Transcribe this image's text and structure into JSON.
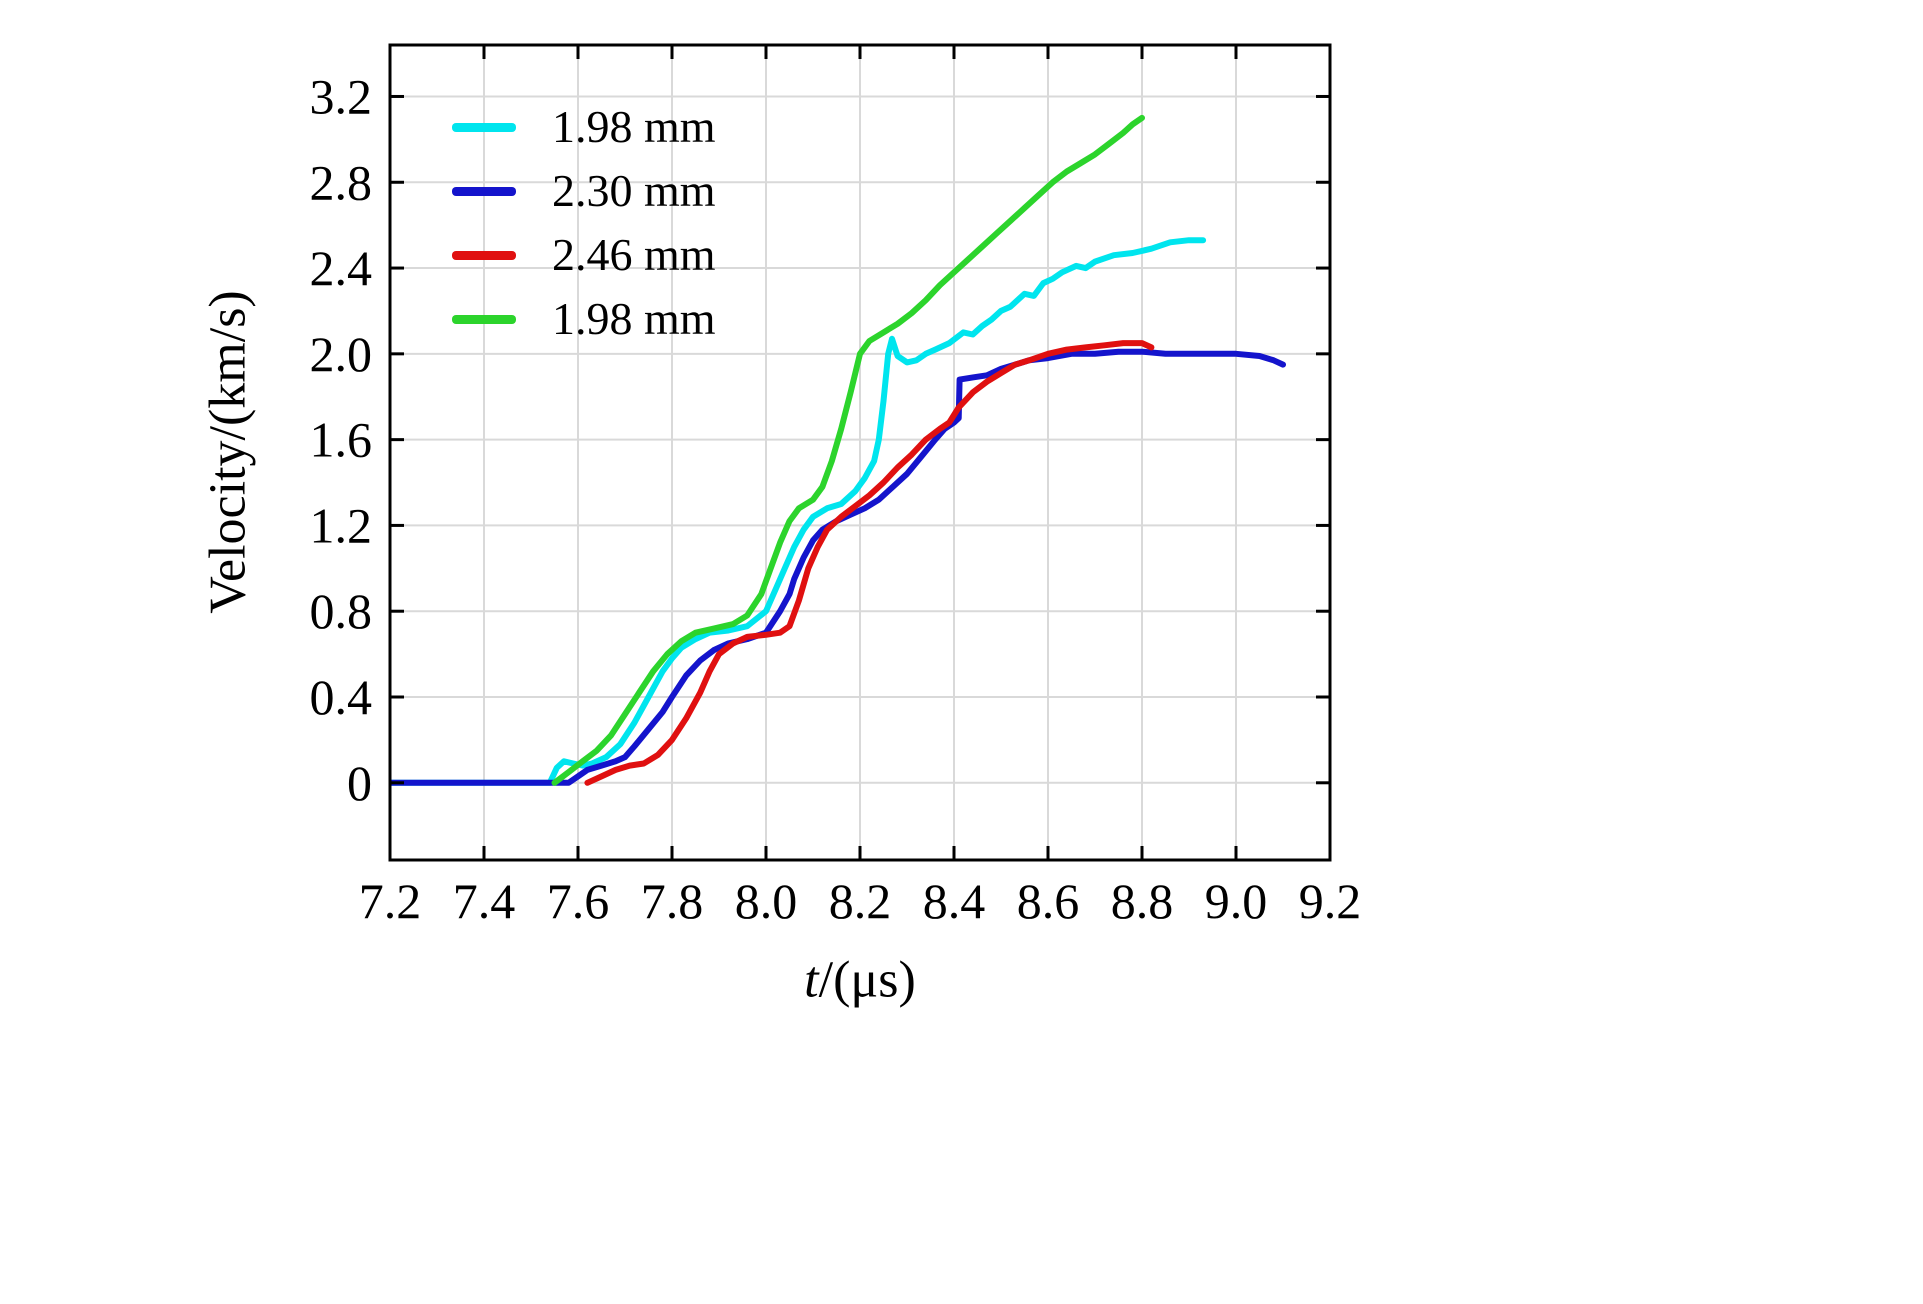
{
  "figure": {
    "ylabel": "Velocity/(km/s)",
    "xlabel_italic": "t",
    "xlabel_rest": "/(μs)"
  },
  "colors": {
    "background": "#ffffff",
    "axis": "#000000",
    "grid": "#d9d9d9",
    "text": "#000000"
  },
  "chart_data": {
    "type": "line",
    "title": "",
    "xlabel": "t/(μs)",
    "ylabel": "Velocity/(km/s)",
    "xlim": [
      7.2,
      9.2
    ],
    "ylim": [
      -0.36,
      3.44
    ],
    "grid": true,
    "legend_position": "upper-left",
    "xticks": [
      "7.2",
      "7.4",
      "7.6",
      "7.8",
      "8.0",
      "8.2",
      "8.4",
      "8.6",
      "8.8",
      "9.0",
      "9.2"
    ],
    "yticks": [
      "0",
      "0.4",
      "0.8",
      "1.2",
      "1.6",
      "2.0",
      "2.4",
      "2.8",
      "3.2"
    ],
    "series": [
      {
        "name": "1.98 mm",
        "color": "#00e5ee",
        "points": [
          [
            7.2,
            0
          ],
          [
            7.54,
            0
          ],
          [
            7.555,
            0.07
          ],
          [
            7.57,
            0.1
          ],
          [
            7.59,
            0.09
          ],
          [
            7.61,
            0.08
          ],
          [
            7.63,
            0.09
          ],
          [
            7.66,
            0.12
          ],
          [
            7.69,
            0.18
          ],
          [
            7.72,
            0.28
          ],
          [
            7.75,
            0.4
          ],
          [
            7.78,
            0.52
          ],
          [
            7.8,
            0.58
          ],
          [
            7.82,
            0.63
          ],
          [
            7.85,
            0.67
          ],
          [
            7.88,
            0.7
          ],
          [
            7.92,
            0.71
          ],
          [
            7.96,
            0.73
          ],
          [
            8.0,
            0.8
          ],
          [
            8.02,
            0.9
          ],
          [
            8.04,
            1.0
          ],
          [
            8.06,
            1.1
          ],
          [
            8.08,
            1.18
          ],
          [
            8.1,
            1.24
          ],
          [
            8.13,
            1.28
          ],
          [
            8.16,
            1.3
          ],
          [
            8.19,
            1.36
          ],
          [
            8.21,
            1.42
          ],
          [
            8.23,
            1.5
          ],
          [
            8.24,
            1.6
          ],
          [
            8.25,
            1.78
          ],
          [
            8.26,
            2.0
          ],
          [
            8.268,
            2.07
          ],
          [
            8.28,
            1.99
          ],
          [
            8.3,
            1.96
          ],
          [
            8.32,
            1.97
          ],
          [
            8.34,
            2.0
          ],
          [
            8.36,
            2.02
          ],
          [
            8.39,
            2.05
          ],
          [
            8.42,
            2.1
          ],
          [
            8.44,
            2.09
          ],
          [
            8.46,
            2.13
          ],
          [
            8.48,
            2.16
          ],
          [
            8.5,
            2.2
          ],
          [
            8.52,
            2.22
          ],
          [
            8.55,
            2.28
          ],
          [
            8.57,
            2.27
          ],
          [
            8.59,
            2.33
          ],
          [
            8.61,
            2.35
          ],
          [
            8.63,
            2.38
          ],
          [
            8.66,
            2.41
          ],
          [
            8.68,
            2.4
          ],
          [
            8.7,
            2.43
          ],
          [
            8.74,
            2.46
          ],
          [
            8.78,
            2.47
          ],
          [
            8.82,
            2.49
          ],
          [
            8.86,
            2.52
          ],
          [
            8.9,
            2.53
          ],
          [
            8.93,
            2.53
          ]
        ]
      },
      {
        "name": "2.30 mm",
        "color": "#1414cc",
        "points": [
          [
            7.2,
            0
          ],
          [
            7.58,
            0
          ],
          [
            7.6,
            0.03
          ],
          [
            7.62,
            0.06
          ],
          [
            7.65,
            0.08
          ],
          [
            7.68,
            0.1
          ],
          [
            7.7,
            0.12
          ],
          [
            7.72,
            0.17
          ],
          [
            7.75,
            0.25
          ],
          [
            7.78,
            0.33
          ],
          [
            7.8,
            0.4
          ],
          [
            7.83,
            0.5
          ],
          [
            7.86,
            0.57
          ],
          [
            7.89,
            0.62
          ],
          [
            7.92,
            0.65
          ],
          [
            7.96,
            0.67
          ],
          [
            8.0,
            0.7
          ],
          [
            8.03,
            0.8
          ],
          [
            8.05,
            0.88
          ],
          [
            8.06,
            0.95
          ],
          [
            8.08,
            1.05
          ],
          [
            8.1,
            1.13
          ],
          [
            8.12,
            1.18
          ],
          [
            8.15,
            1.22
          ],
          [
            8.18,
            1.25
          ],
          [
            8.21,
            1.28
          ],
          [
            8.24,
            1.32
          ],
          [
            8.27,
            1.38
          ],
          [
            8.3,
            1.44
          ],
          [
            8.33,
            1.52
          ],
          [
            8.36,
            1.6
          ],
          [
            8.38,
            1.65
          ],
          [
            8.4,
            1.68
          ],
          [
            8.41,
            1.7
          ],
          [
            8.412,
            1.88
          ],
          [
            8.44,
            1.89
          ],
          [
            8.47,
            1.9
          ],
          [
            8.5,
            1.93
          ],
          [
            8.53,
            1.95
          ],
          [
            8.56,
            1.97
          ],
          [
            8.6,
            1.98
          ],
          [
            8.65,
            2.0
          ],
          [
            8.7,
            2.0
          ],
          [
            8.75,
            2.01
          ],
          [
            8.8,
            2.01
          ],
          [
            8.85,
            2.0
          ],
          [
            8.9,
            2.0
          ],
          [
            8.95,
            2.0
          ],
          [
            9.0,
            2.0
          ],
          [
            9.05,
            1.99
          ],
          [
            9.08,
            1.97
          ],
          [
            9.1,
            1.95
          ]
        ]
      },
      {
        "name": "2.46 mm",
        "color": "#e01010",
        "points": [
          [
            7.62,
            0
          ],
          [
            7.65,
            0.03
          ],
          [
            7.68,
            0.06
          ],
          [
            7.71,
            0.08
          ],
          [
            7.74,
            0.09
          ],
          [
            7.77,
            0.13
          ],
          [
            7.8,
            0.2
          ],
          [
            7.83,
            0.3
          ],
          [
            7.86,
            0.42
          ],
          [
            7.88,
            0.52
          ],
          [
            7.9,
            0.6
          ],
          [
            7.93,
            0.65
          ],
          [
            7.96,
            0.68
          ],
          [
            8.0,
            0.69
          ],
          [
            8.03,
            0.7
          ],
          [
            8.05,
            0.73
          ],
          [
            8.07,
            0.85
          ],
          [
            8.09,
            1.0
          ],
          [
            8.11,
            1.1
          ],
          [
            8.13,
            1.18
          ],
          [
            8.16,
            1.24
          ],
          [
            8.19,
            1.29
          ],
          [
            8.22,
            1.34
          ],
          [
            8.25,
            1.4
          ],
          [
            8.28,
            1.47
          ],
          [
            8.31,
            1.53
          ],
          [
            8.34,
            1.6
          ],
          [
            8.37,
            1.65
          ],
          [
            8.39,
            1.68
          ],
          [
            8.41,
            1.75
          ],
          [
            8.44,
            1.82
          ],
          [
            8.47,
            1.87
          ],
          [
            8.5,
            1.91
          ],
          [
            8.53,
            1.95
          ],
          [
            8.56,
            1.97
          ],
          [
            8.6,
            2.0
          ],
          [
            8.64,
            2.02
          ],
          [
            8.68,
            2.03
          ],
          [
            8.72,
            2.04
          ],
          [
            8.76,
            2.05
          ],
          [
            8.8,
            2.05
          ],
          [
            8.82,
            2.03
          ]
        ]
      },
      {
        "name": "1.98 mm",
        "color": "#2cd42c",
        "points": [
          [
            7.55,
            0
          ],
          [
            7.58,
            0.05
          ],
          [
            7.61,
            0.1
          ],
          [
            7.64,
            0.15
          ],
          [
            7.67,
            0.22
          ],
          [
            7.7,
            0.32
          ],
          [
            7.73,
            0.42
          ],
          [
            7.76,
            0.52
          ],
          [
            7.79,
            0.6
          ],
          [
            7.82,
            0.66
          ],
          [
            7.85,
            0.7
          ],
          [
            7.89,
            0.72
          ],
          [
            7.93,
            0.74
          ],
          [
            7.96,
            0.78
          ],
          [
            7.99,
            0.88
          ],
          [
            8.01,
            1.0
          ],
          [
            8.03,
            1.12
          ],
          [
            8.05,
            1.22
          ],
          [
            8.07,
            1.28
          ],
          [
            8.1,
            1.32
          ],
          [
            8.12,
            1.38
          ],
          [
            8.14,
            1.5
          ],
          [
            8.16,
            1.65
          ],
          [
            8.18,
            1.82
          ],
          [
            8.2,
            2.0
          ],
          [
            8.22,
            2.06
          ],
          [
            8.25,
            2.1
          ],
          [
            8.28,
            2.14
          ],
          [
            8.31,
            2.19
          ],
          [
            8.34,
            2.25
          ],
          [
            8.37,
            2.32
          ],
          [
            8.4,
            2.38
          ],
          [
            8.43,
            2.44
          ],
          [
            8.46,
            2.5
          ],
          [
            8.49,
            2.56
          ],
          [
            8.52,
            2.62
          ],
          [
            8.55,
            2.68
          ],
          [
            8.58,
            2.74
          ],
          [
            8.61,
            2.8
          ],
          [
            8.64,
            2.85
          ],
          [
            8.67,
            2.89
          ],
          [
            8.7,
            2.93
          ],
          [
            8.73,
            2.98
          ],
          [
            8.76,
            3.03
          ],
          [
            8.78,
            3.07
          ],
          [
            8.8,
            3.1
          ]
        ]
      }
    ]
  }
}
